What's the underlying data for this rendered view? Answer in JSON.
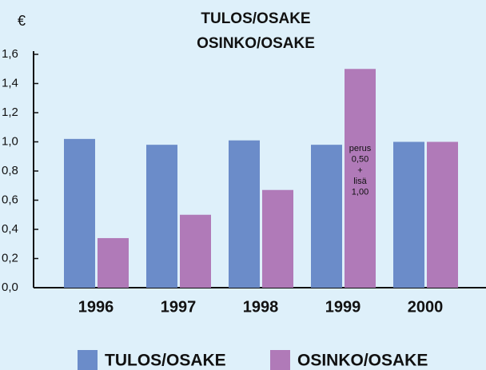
{
  "chart_data": {
    "type": "bar",
    "title": [
      "TULOS/OSAKE",
      "OSINKO/OSAKE"
    ],
    "y_unit": "€",
    "categories": [
      "1996",
      "1997",
      "1998",
      "1999",
      "2000"
    ],
    "series": [
      {
        "name": "TULOS/OSAKE",
        "color": "#6b8cc9",
        "values": [
          1.02,
          0.98,
          1.01,
          0.98,
          1.0
        ]
      },
      {
        "name": "OSINKO/OSAKE",
        "color": "#b07ab8",
        "values": [
          0.34,
          0.5,
          0.67,
          1.5,
          1.0
        ]
      }
    ],
    "annotation": {
      "category": "1999",
      "series": "OSINKO/OSAKE",
      "lines": [
        "perus",
        "0,50",
        "+",
        "lisä",
        "1,00"
      ]
    },
    "ylim": [
      0,
      1.6
    ],
    "yticks": [
      {
        "value": 0,
        "label": "0,0"
      },
      {
        "value": 0.2,
        "label": "0,2"
      },
      {
        "value": 0.4,
        "label": "0,4"
      },
      {
        "value": 0.6,
        "label": "0,6"
      },
      {
        "value": 0.8,
        "label": "0,8"
      },
      {
        "value": 1.0,
        "label": "1,0"
      },
      {
        "value": 1.2,
        "label": "1,2"
      },
      {
        "value": 1.4,
        "label": "1,4"
      },
      {
        "value": 1.6,
        "label": "1,6"
      }
    ],
    "grid": false,
    "legend": "bottom"
  }
}
